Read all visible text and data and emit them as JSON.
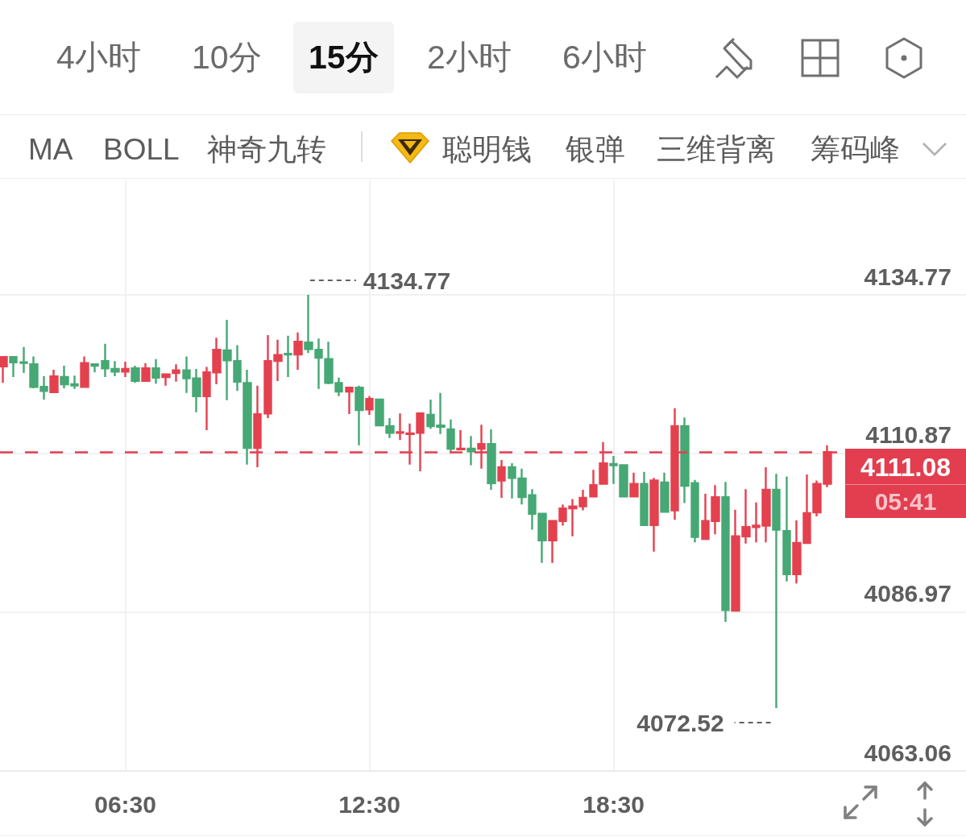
{
  "chart_data": {
    "type": "candlestick",
    "x": [
      3.5,
      3.75,
      4,
      4.25,
      4.5,
      4.75,
      5,
      5.25,
      5.5,
      5.75,
      6,
      6.25,
      6.5,
      6.75,
      7,
      7.25,
      7.5,
      7.75,
      8,
      8.25,
      8.5,
      8.75,
      9,
      9.25,
      9.5,
      9.75,
      10,
      10.25,
      10.5,
      10.75,
      11,
      11.25,
      11.5,
      11.75,
      12,
      12.25,
      12.5,
      12.75,
      13,
      13.25,
      13.5,
      13.75,
      14,
      14.25,
      14.5,
      14.75,
      15,
      15.25,
      15.5,
      15.75,
      16,
      16.25,
      16.5,
      16.75,
      17,
      17.25,
      17.5,
      17.75,
      18,
      18.25,
      18.5,
      18.75,
      19,
      19.25,
      19.5,
      19.75,
      20,
      20.25,
      20.5,
      20.75,
      21,
      21.25,
      21.5,
      21.75,
      22,
      22.25,
      22.5,
      22.75,
      23,
      23.25,
      23.5,
      23.75
    ],
    "ohlc": [
      [
        4124.0,
        4125.4,
        4121.5,
        4125.4
      ],
      [
        4125.4,
        4125.4,
        4122.4,
        4124.6
      ],
      [
        4124.6,
        4126.9,
        4123.0,
        4124.5
      ],
      [
        4124.3,
        4125.5,
        4120.7,
        4120.9
      ],
      [
        4120.9,
        4122.5,
        4119.0,
        4120.3
      ],
      [
        4120.1,
        4123.5,
        4120.1,
        4122.5
      ],
      [
        4122.4,
        4124.1,
        4120.7,
        4121.3
      ],
      [
        4121.3,
        4122.6,
        4120.6,
        4121.1
      ],
      [
        4120.9,
        4125.5,
        4120.8,
        4124.5
      ],
      [
        4124.3,
        4124.3,
        4123.1,
        4124.1
      ],
      [
        4124.8,
        4127.4,
        4122.4,
        4123.7
      ],
      [
        4123.6,
        4124.8,
        4122.5,
        4123.2
      ],
      [
        4123.2,
        4124.7,
        4122.4,
        4123.6
      ],
      [
        4123.7,
        4124.1,
        4121.5,
        4121.8
      ],
      [
        4121.8,
        4124.5,
        4121.7,
        4123.7
      ],
      [
        4123.7,
        4125.1,
        4121.4,
        4122.3
      ],
      [
        4122.4,
        4122.9,
        4121.1,
        4122.8
      ],
      [
        4123.0,
        4124.3,
        4121.7,
        4123.4
      ],
      [
        4123.4,
        4125.5,
        4120.0,
        4122.2
      ],
      [
        4122.2,
        4123.6,
        4117.1,
        4119.5
      ],
      [
        4119.5,
        4123.9,
        4114.4,
        4123.1
      ],
      [
        4123.1,
        4128.3,
        4121.3,
        4126.5
      ],
      [
        4126.4,
        4131.0,
        4118.9,
        4124.9
      ],
      [
        4124.8,
        4127.2,
        4120.3,
        4121.7
      ],
      [
        4121.5,
        4123.5,
        4109.2,
        4111.7
      ],
      [
        4111.7,
        4121.1,
        4108.8,
        4116.8
      ],
      [
        4116.9,
        4128.7,
        4116.2,
        4124.8
      ],
      [
        4124.8,
        4128.0,
        4121.8,
        4125.7
      ],
      [
        4125.9,
        4128.6,
        4122.4,
        4125.8
      ],
      [
        4125.8,
        4129.1,
        4123.5,
        4127.7
      ],
      [
        4127.6,
        4134.77,
        4126.0,
        4126.6
      ],
      [
        4126.5,
        4128.2,
        4120.6,
        4125.3
      ],
      [
        4125.1,
        4127.7,
        4121.3,
        4121.5
      ],
      [
        4121.5,
        4122.3,
        4119.5,
        4120.2
      ],
      [
        4120.2,
        4120.8,
        4116.8,
        4120.8
      ],
      [
        4120.8,
        4121.1,
        4112.1,
        4117.4
      ],
      [
        4117.5,
        4119.5,
        4116.7,
        4119.1
      ],
      [
        4119.0,
        4119.1,
        4115.0,
        4115.1
      ],
      [
        4115.0,
        4116.2,
        4113.2,
        4114.0
      ],
      [
        4114.0,
        4116.9,
        4112.9,
        4114.1
      ],
      [
        4113.8,
        4115.4,
        4109.2,
        4113.9
      ],
      [
        4114.0,
        4117.1,
        4108.2,
        4116.9
      ],
      [
        4116.7,
        4119.0,
        4114.6,
        4115.0
      ],
      [
        4115.1,
        4120.0,
        4113.8,
        4114.9
      ],
      [
        4114.5,
        4116.0,
        4111.2,
        4111.6
      ],
      [
        4111.5,
        4114.4,
        4111.4,
        4111.6
      ],
      [
        4111.6,
        4113.5,
        4109.1,
        4111.2
      ],
      [
        4111.6,
        4115.2,
        4108.6,
        4112.3
      ],
      [
        4112.3,
        4114.5,
        4105.4,
        4106.4
      ],
      [
        4106.8,
        4109.9,
        4104.2,
        4108.8
      ],
      [
        4108.8,
        4109.4,
        4104.1,
        4107.2
      ],
      [
        4107.1,
        4108.6,
        4103.2,
        4104.3
      ],
      [
        4104.6,
        4105.5,
        4099.4,
        4101.8
      ],
      [
        4101.8,
        4101.8,
        4094.4,
        4097.8
      ],
      [
        4097.8,
        4100.7,
        4094.4,
        4100.7
      ],
      [
        4100.7,
        4103.2,
        4100.0,
        4102.6
      ],
      [
        4102.6,
        4104.0,
        4098.4,
        4102.9
      ],
      [
        4102.9,
        4105.4,
        4102.3,
        4104.2
      ],
      [
        4104.4,
        4108.4,
        4104.4,
        4106.1
      ],
      [
        4106.3,
        4112.6,
        4106.3,
        4109.4
      ],
      [
        4109.3,
        4110.5,
        4106.3,
        4109.1
      ],
      [
        4109.1,
        4109.1,
        4104.3,
        4104.4
      ],
      [
        4104.4,
        4108.0,
        4104.3,
        4106.3
      ],
      [
        4106.3,
        4108.1,
        4100.1,
        4100.1
      ],
      [
        4100.1,
        4107.2,
        4096.1,
        4106.8
      ],
      [
        4106.5,
        4108.0,
        4102.0,
        4102.1
      ],
      [
        4102.3,
        4117.7,
        4100.9,
        4115.0
      ],
      [
        4115.0,
        4116.3,
        4103.4,
        4106.0
      ],
      [
        4106.4,
        4106.9,
        4097.5,
        4098.3
      ],
      [
        4098.0,
        4104.8,
        4098.0,
        4100.7
      ],
      [
        4100.7,
        4106.1,
        4098.7,
        4104.3
      ],
      [
        4104.3,
        4106.6,
        4085.5,
        4087.3
      ],
      [
        4087.2,
        4102.4,
        4087.1,
        4098.4
      ],
      [
        4098.4,
        4105.5,
        4097.3,
        4099.8
      ],
      [
        4099.8,
        4103.5,
        4097.5,
        4100.0
      ],
      [
        4100.0,
        4108.8,
        4097.5,
        4105.4
      ],
      [
        4105.4,
        4107.8,
        4072.52,
        4099.4
      ],
      [
        4099.2,
        4107.4,
        4091.6,
        4092.7
      ],
      [
        4092.7,
        4100.8,
        4091.3,
        4097.4
      ],
      [
        4097.4,
        4107.7,
        4097.4,
        4101.9
      ],
      [
        4102.0,
        4106.8,
        4101.4,
        4106.3
      ],
      [
        4106.3,
        4112.1,
        4105.8,
        4111.08
      ]
    ],
    "colors": [
      "#e4414f",
      "#46a874",
      "#46a874",
      "#46a874",
      "#46a874",
      "#e4414f",
      "#46a874",
      "#46a874",
      "#e4414f",
      "#46a874",
      "#46a874",
      "#46a874",
      "#e4414f",
      "#46a874",
      "#e4414f",
      "#46a874",
      "#e4414f",
      "#e4414f",
      "#46a874",
      "#46a874",
      "#e4414f",
      "#e4414f",
      "#46a874",
      "#46a874",
      "#46a874",
      "#e4414f",
      "#e4414f",
      "#e4414f",
      "#46a874",
      "#e4414f",
      "#46a874",
      "#46a874",
      "#46a874",
      "#46a874",
      "#e4414f",
      "#46a874",
      "#e4414f",
      "#46a874",
      "#46a874",
      "#e4414f",
      "#e4414f",
      "#e4414f",
      "#46a874",
      "#46a874",
      "#46a874",
      "#e4414f",
      "#46a874",
      "#e4414f",
      "#46a874",
      "#e4414f",
      "#46a874",
      "#46a874",
      "#46a874",
      "#46a874",
      "#e4414f",
      "#e4414f",
      "#e4414f",
      "#e4414f",
      "#e4414f",
      "#e4414f",
      "#46a874",
      "#46a874",
      "#e4414f",
      "#46a874",
      "#e4414f",
      "#46a874",
      "#e4414f",
      "#46a874",
      "#46a874",
      "#e4414f",
      "#e4414f",
      "#46a874",
      "#e4414f",
      "#e4414f",
      "#e4414f",
      "#e4414f",
      "#46a874",
      "#46a874",
      "#e4414f",
      "#e4414f",
      "#e4414f",
      "#e4414f"
    ],
    "xlim": [
      3.42,
      27.16
    ],
    "xticks": [
      {
        "value": 6.5,
        "label": "06:30"
      },
      {
        "value": 12.5,
        "label": "12:30"
      },
      {
        "value": 18.5,
        "label": "18:30"
      }
    ],
    "ylim": [
      4063.06,
      4152.0
    ],
    "yticks": [
      4063.06,
      4086.97,
      4110.87,
      4134.77
    ],
    "grid": true,
    "ref_lines": [
      {
        "axis": "y",
        "value": 4111.08,
        "label": "4111.08",
        "color": "#e23e4f",
        "line_style": "dashed"
      }
    ],
    "annotations": [
      "4小时",
      "10分",
      "15分",
      "2小时",
      "6小时",
      "MA",
      "BOLL",
      "神奇九转",
      "聪明钱",
      "银弹",
      "三维背离",
      "筹码峰",
      {
        "text": "4134.77",
        "x": 11.0,
        "y": 4134.77
      },
      {
        "text": "4072.52",
        "x": 22.5,
        "y": 4072.52
      },
      "05:41"
    ]
  }
}
